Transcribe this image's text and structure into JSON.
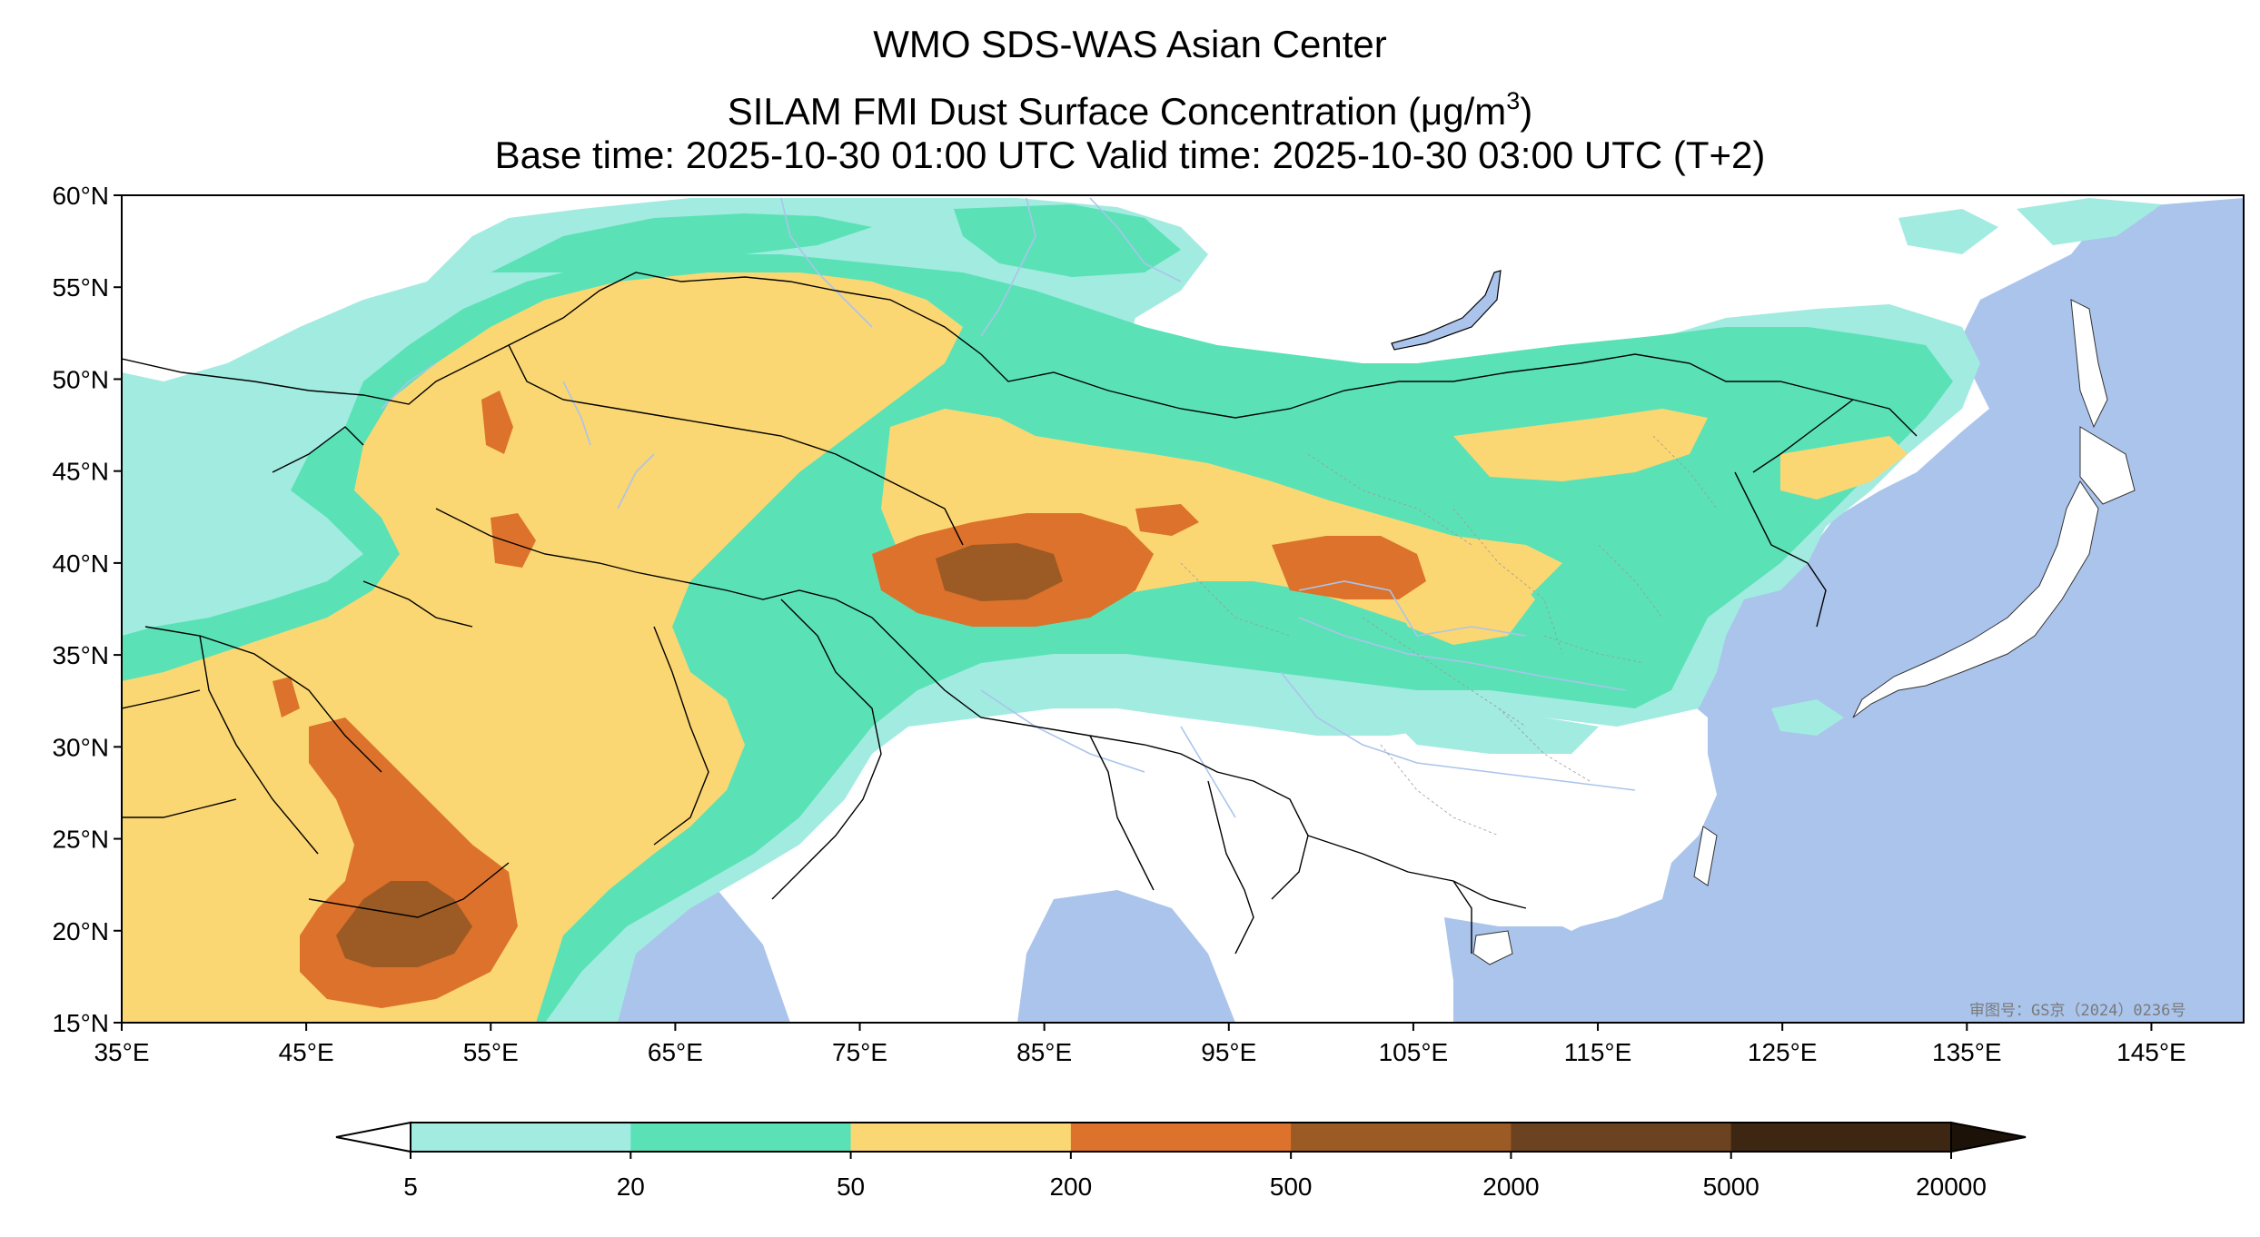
{
  "title": {
    "line1": "WMO SDS-WAS Asian Center",
    "line2_pre": "SILAM FMI Dust Surface Concentration (",
    "line2_mu": "μ",
    "line2_unit": "g/m",
    "line2_sup": "3",
    "line2_post": ")",
    "line3": "Base time: 2025-10-30 01:00 UTC Valid time: 2025-10-30 03:00 UTC (T+2)"
  },
  "map": {
    "lon_range": [
      35,
      150
    ],
    "lat_range": [
      15,
      60
    ],
    "lon_ticks": [
      35,
      45,
      55,
      65,
      75,
      85,
      95,
      105,
      115,
      125,
      135,
      145
    ],
    "lat_ticks": [
      15,
      20,
      25,
      30,
      35,
      40,
      45,
      50,
      55,
      60
    ],
    "lon_tick_labels": [
      "35°E",
      "45°E",
      "55°E",
      "65°E",
      "75°E",
      "85°E",
      "95°E",
      "105°E",
      "115°E",
      "125°E",
      "135°E",
      "145°E"
    ],
    "lat_tick_labels": [
      "15°N",
      "20°N",
      "25°N",
      "30°N",
      "35°N",
      "40°N",
      "45°N",
      "50°N",
      "55°N",
      "60°N"
    ],
    "ocean_color": "#aac4ec",
    "land_color": "#ffffff",
    "watermark": "审图号：GS京（2024）0236号"
  },
  "colorbar": {
    "levels": [
      "5",
      "20",
      "50",
      "200",
      "500",
      "2000",
      "5000",
      "20000"
    ],
    "colors": [
      "#a2ebe0",
      "#5ae2b6",
      "#fbd773",
      "#dc722c",
      "#9c5b24",
      "#6b4320",
      "#3d2612"
    ],
    "extend": "both"
  }
}
